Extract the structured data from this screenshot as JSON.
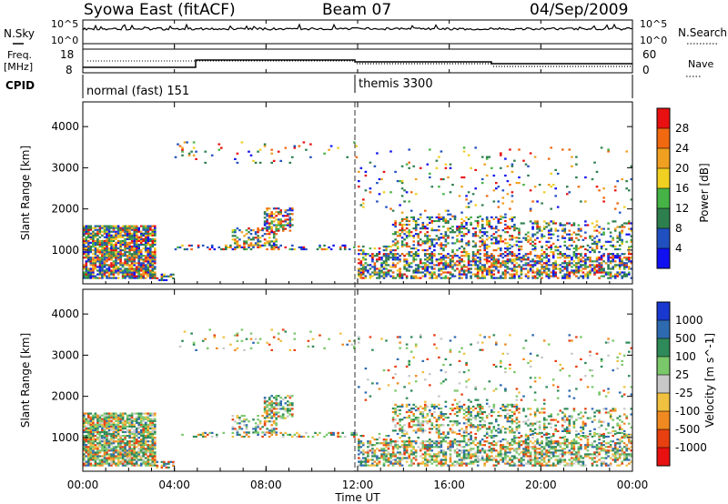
{
  "header": {
    "station": "Syowa East (fitACF)",
    "beam": "Beam 07",
    "date": "04/Sep/2009"
  },
  "strip_labels": {
    "nsky": "N.Sky",
    "nsky_ticks": [
      "10^5",
      "10^0"
    ],
    "nsearch": "N.Search",
    "nsearch_ticks": [
      "10^5",
      "10^0"
    ],
    "freq": "Freq.",
    "freq_unit": "[MHz]",
    "freq_ticks": [
      "18",
      "8"
    ],
    "nave": "Nave",
    "nave_ticks": [
      "60",
      "0"
    ],
    "cpid": "CPID"
  },
  "cpid_segments": [
    {
      "label": "normal (fast) 151",
      "start_hour": 0,
      "end_hour": 12
    },
    {
      "label": "themis 3300",
      "start_hour": 12,
      "end_hour": 24
    }
  ],
  "chart_data": [
    {
      "type": "heatmap",
      "panel": "power",
      "ylabel": "Slant Range [km]",
      "xlabel": "Time UT",
      "x_ticks": [
        "00:00",
        "04:00",
        "08:00",
        "12:00",
        "16:00",
        "20:00",
        "00:00"
      ],
      "xlim_hours": [
        0,
        24
      ],
      "ylim": [
        180,
        4600
      ],
      "y_ticks": [
        1000,
        2000,
        3000,
        4000
      ],
      "colorbar": {
        "label": "Power [dB]",
        "ticks": [
          "4",
          "8",
          "12",
          "16",
          "20",
          "24",
          "28"
        ],
        "colors": [
          "#1010f0",
          "#2050c0",
          "#2e7f4e",
          "#45b345",
          "#f0d020",
          "#f0a020",
          "#f06810",
          "#e81010"
        ]
      }
    },
    {
      "type": "heatmap",
      "panel": "velocity",
      "ylabel": "Slant Range [km]",
      "xlabel": "Time UT",
      "x_ticks": [
        "00:00",
        "04:00",
        "08:00",
        "12:00",
        "16:00",
        "20:00",
        "00:00"
      ],
      "xlim_hours": [
        0,
        24
      ],
      "ylim": [
        180,
        4600
      ],
      "y_ticks": [
        1000,
        2000,
        3000,
        4000
      ],
      "colorbar": {
        "label": "Velocity [m s^-1]",
        "ticks": [
          "1000",
          "500",
          "100",
          "25",
          "-25",
          "-100",
          "-500",
          "-1000"
        ],
        "colors": [
          "#1838d0",
          "#2e6ab0",
          "#2e8a58",
          "#7ac86a",
          "#c8c8c8",
          "#f0c040",
          "#f08a20",
          "#e84010",
          "#e81010"
        ]
      }
    }
  ]
}
